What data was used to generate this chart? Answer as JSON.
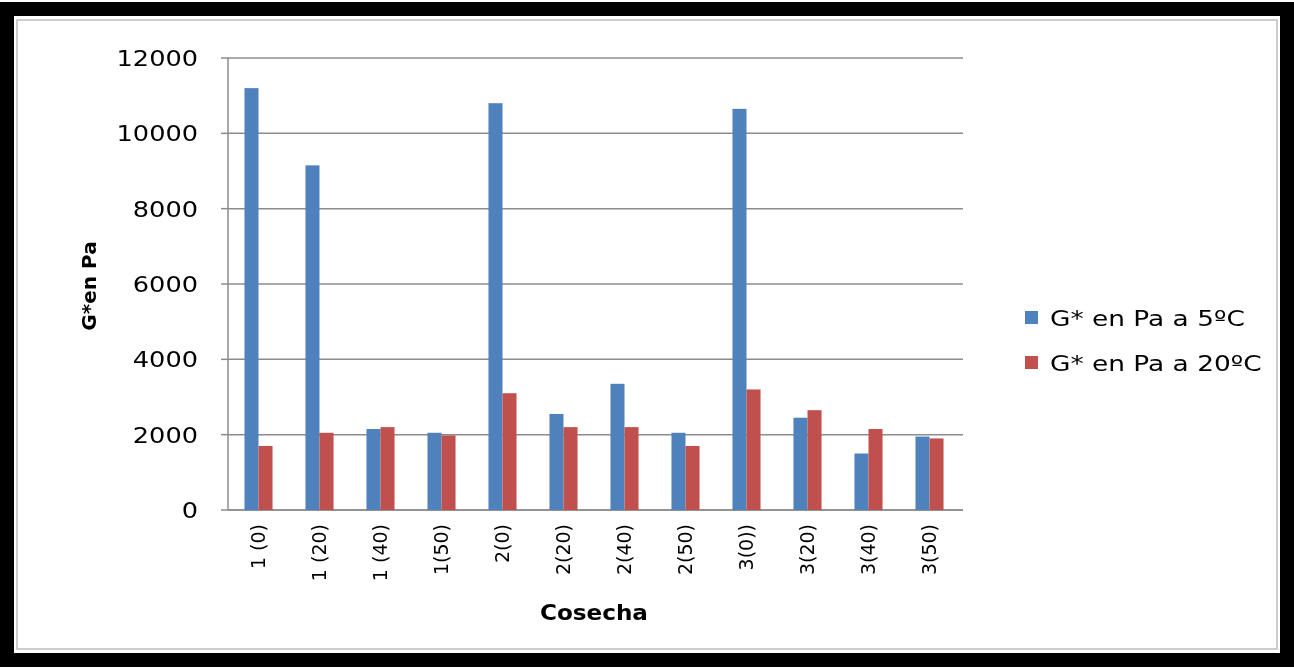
{
  "chart_data": {
    "type": "bar",
    "xlabel": "Cosecha",
    "ylabel": "G*en Pa",
    "categories": [
      "1 (0)",
      "1 (20)",
      "1 (40)",
      "1(50)",
      "2(0)",
      "2(20)",
      "2(40)",
      "2(50)",
      "3(0))",
      "3(20)",
      "3(40)",
      "3(50)"
    ],
    "series": [
      {
        "name": "G* en Pa a 5ºC",
        "color": "#4f81bd",
        "values": [
          11200,
          9150,
          2150,
          2050,
          10800,
          2550,
          3350,
          2050,
          10650,
          2450,
          1500,
          1950
        ]
      },
      {
        "name": "G* en Pa a 20ºC",
        "color": "#c0504d",
        "values": [
          1700,
          2050,
          2200,
          1980,
          3100,
          2200,
          2200,
          1700,
          3200,
          2650,
          2150,
          1900
        ]
      }
    ],
    "ylim": [
      0,
      12000
    ],
    "yticks": [
      0,
      2000,
      4000,
      6000,
      8000,
      10000,
      12000
    ],
    "grid": "y",
    "legend": "right"
  }
}
